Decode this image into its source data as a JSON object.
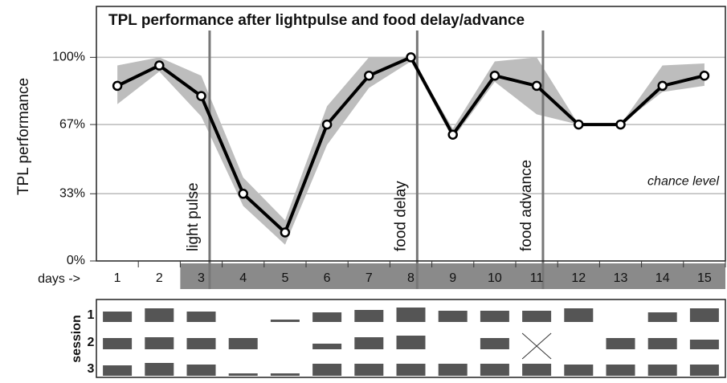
{
  "chart_data": {
    "type": "line",
    "title": "TPL performance after lightpulse and food delay/advance",
    "ylabel": "TPL performance",
    "x_caption": "days ->",
    "x": [
      1,
      2,
      3,
      4,
      5,
      6,
      7,
      8,
      9,
      10,
      11,
      12,
      13,
      14,
      15
    ],
    "xlim": [
      0.5,
      15.5
    ],
    "values": [
      86,
      96,
      81,
      33,
      14,
      67,
      91,
      100,
      62,
      91,
      86,
      67,
      67,
      86,
      91
    ],
    "band_upper": [
      96,
      100,
      91,
      41,
      20,
      76,
      100,
      100,
      65,
      98,
      100,
      67,
      67,
      96,
      97
    ],
    "band_lower": [
      77,
      93,
      71,
      27,
      8,
      57,
      85,
      98,
      60,
      88,
      72,
      67,
      67,
      83,
      86
    ],
    "color": "#000000",
    "band_color": "#bdbdbd",
    "ylim": [
      0,
      125
    ],
    "yticks": [
      {
        "value": 0,
        "label": "0%"
      },
      {
        "value": 33,
        "label": "33%"
      },
      {
        "value": 67,
        "label": "67%"
      },
      {
        "value": 100,
        "label": "100%"
      }
    ],
    "grid": true,
    "events": [
      {
        "x": 3.2,
        "label": "light pulse"
      },
      {
        "x": 8.15,
        "label": "food delay"
      },
      {
        "x": 11.15,
        "label": "food advance"
      }
    ],
    "annotation": {
      "text": "chance level",
      "y": 33
    },
    "shaded_days": [
      3,
      15
    ],
    "session": {
      "title": "session",
      "rows": [
        "1",
        "2",
        "3"
      ],
      "values": [
        [
          13,
          17,
          13,
          0,
          3,
          12,
          15,
          18,
          14,
          14,
          14,
          17,
          0,
          12,
          17
        ],
        [
          14,
          15,
          14,
          14,
          0,
          7,
          15,
          17,
          0,
          14,
          null,
          0,
          14,
          14,
          12
        ],
        [
          13,
          16,
          14,
          3,
          3,
          15,
          15,
          15,
          15,
          15,
          15,
          14,
          14,
          14,
          14
        ]
      ]
    }
  }
}
